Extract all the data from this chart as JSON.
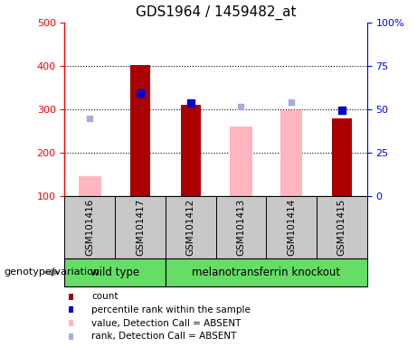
{
  "title": "GDS1964 / 1459482_at",
  "samples": [
    "GSM101416",
    "GSM101417",
    "GSM101412",
    "GSM101413",
    "GSM101414",
    "GSM101415"
  ],
  "count_values": [
    null,
    403,
    310,
    null,
    null,
    280
  ],
  "count_absent_values": [
    145,
    null,
    null,
    260,
    297,
    null
  ],
  "percentile_values": [
    null,
    338,
    315,
    null,
    null,
    298
  ],
  "percentile_absent_values": [
    280,
    null,
    null,
    307,
    317,
    null
  ],
  "ylim_left": [
    100,
    500
  ],
  "yticks_left": [
    100,
    200,
    300,
    400,
    500
  ],
  "yticklabels_right": [
    "0",
    "25",
    "50",
    "75",
    "100%"
  ],
  "right_tick_positions": [
    100,
    200,
    300,
    400,
    500
  ],
  "color_count": "#AA0000",
  "color_count_absent": "#FFB6C1",
  "color_percentile": "#0000CC",
  "color_percentile_absent": "#AAAADD",
  "bg_color_sample": "#C8C8C8",
  "genotype_text": "genotype/variation",
  "wild_type_label": "wild type",
  "knockout_label": "melanotransferrin knockout",
  "legend_items": [
    {
      "label": "count",
      "color": "#AA0000"
    },
    {
      "label": "percentile rank within the sample",
      "color": "#0000CC"
    },
    {
      "label": "value, Detection Call = ABSENT",
      "color": "#FFB6C1"
    },
    {
      "label": "rank, Detection Call = ABSENT",
      "color": "#AAAADD"
    }
  ],
  "bar_width": 0.4,
  "title_fontsize": 11
}
